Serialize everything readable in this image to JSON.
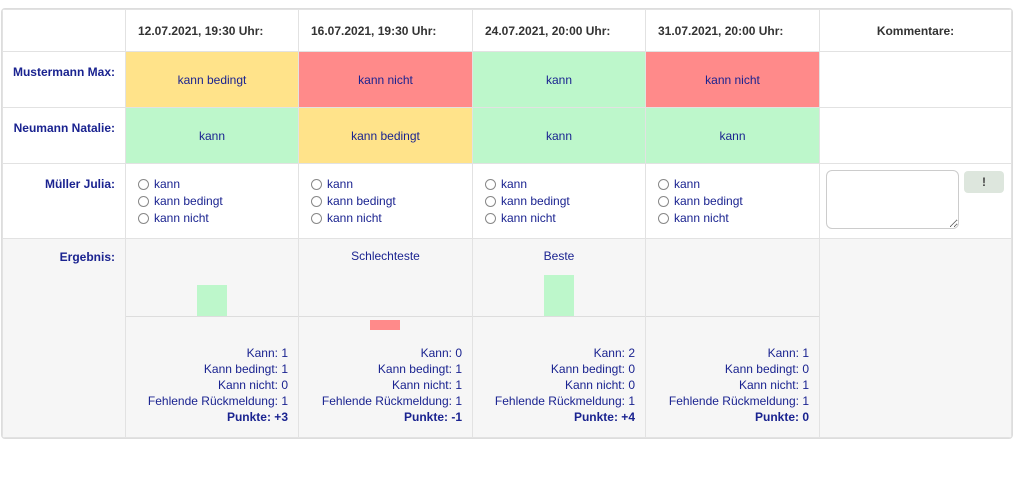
{
  "dates": [
    "12.07.2021, 19:30 Uhr:",
    "16.07.2021, 19:30 Uhr:",
    "24.07.2021, 20:00 Uhr:",
    "31.07.2021, 20:00 Uhr:"
  ],
  "comments_header": "Kommentare:",
  "rows": [
    {
      "name": "Mustermann Max:",
      "status": [
        "kann bedingt",
        "kann nicht",
        "kann",
        "kann nicht"
      ]
    },
    {
      "name": "Neumann Natalie:",
      "status": [
        "kann",
        "kann bedingt",
        "kann",
        "kann"
      ]
    }
  ],
  "status_colors": {
    "kann": "#bdf7cb",
    "kann bedingt": "#ffe38a",
    "kann nicht": "#ff8a8a"
  },
  "input_row": {
    "name": "Müller Julia:",
    "options": [
      "kann",
      "kann bedingt",
      "kann nicht"
    ],
    "comment_button": "!"
  },
  "result": {
    "label": "Ergebnis:",
    "columns": [
      {
        "tag": "",
        "kann": "Kann: 1",
        "bedingt": "Kann bedingt: 1",
        "nicht": "Kann nicht: 0",
        "fehlend": "Fehlende Rückmeldung: 1",
        "punkte": "Punkte: +3",
        "points": 3
      },
      {
        "tag": "Schlechteste",
        "kann": "Kann: 0",
        "bedingt": "Kann bedingt: 1",
        "nicht": "Kann nicht: 1",
        "fehlend": "Fehlende Rückmeldung: 1",
        "punkte": "Punkte: -1",
        "points": -1
      },
      {
        "tag": "Beste",
        "kann": "Kann: 2",
        "bedingt": "Kann bedingt: 0",
        "nicht": "Kann nicht: 0",
        "fehlend": "Fehlende Rückmeldung: 1",
        "punkte": "Punkte: +4",
        "points": 4
      },
      {
        "tag": "",
        "kann": "Kann: 1",
        "bedingt": "Kann bedingt: 0",
        "nicht": "Kann nicht: 1",
        "fehlend": "Fehlende Rückmeldung: 1",
        "punkte": "Punkte: 0",
        "points": 0
      }
    ]
  }
}
